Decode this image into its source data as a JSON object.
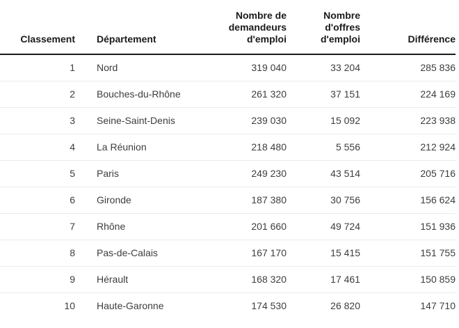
{
  "table": {
    "headers": [
      "Classement",
      "Département",
      "Nombre de\ndemandeurs\nd'emploi",
      "Nombre\nd'offres\nd'emploi",
      "Différence"
    ],
    "rows": [
      {
        "rank": "1",
        "departement": "Nord",
        "demandeurs": "319 040",
        "offres": "33 204",
        "difference": "285 836"
      },
      {
        "rank": "2",
        "departement": "Bouches-du-Rhône",
        "demandeurs": "261 320",
        "offres": "37 151",
        "difference": "224 169"
      },
      {
        "rank": "3",
        "departement": "Seine-Saint-Denis",
        "demandeurs": "239 030",
        "offres": "15 092",
        "difference": "223 938"
      },
      {
        "rank": "4",
        "departement": "La Réunion",
        "demandeurs": "218 480",
        "offres": "5 556",
        "difference": "212 924"
      },
      {
        "rank": "5",
        "departement": "Paris",
        "demandeurs": "249 230",
        "offres": "43 514",
        "difference": "205 716"
      },
      {
        "rank": "6",
        "departement": "Gironde",
        "demandeurs": "187 380",
        "offres": "30 756",
        "difference": "156 624"
      },
      {
        "rank": "7",
        "departement": "Rhône",
        "demandeurs": "201 660",
        "offres": "49 724",
        "difference": "151 936"
      },
      {
        "rank": "8",
        "departement": "Pas-de-Calais",
        "demandeurs": "167 170",
        "offres": "15 415",
        "difference": "151 755"
      },
      {
        "rank": "9",
        "departement": "Hérault",
        "demandeurs": "168 320",
        "offres": "17 461",
        "difference": "150 859"
      },
      {
        "rank": "10",
        "departement": "Haute-Garonne",
        "demandeurs": "174 530",
        "offres": "26 820",
        "difference": "147 710"
      }
    ]
  },
  "chart_data": {
    "type": "table",
    "columns": [
      "Classement",
      "Département",
      "Nombre de demandeurs d'emploi",
      "Nombre d'offres d'emploi",
      "Différence"
    ],
    "rows": [
      [
        1,
        "Nord",
        319040,
        33204,
        285836
      ],
      [
        2,
        "Bouches-du-Rhône",
        261320,
        37151,
        224169
      ],
      [
        3,
        "Seine-Saint-Denis",
        239030,
        15092,
        223938
      ],
      [
        4,
        "La Réunion",
        218480,
        5556,
        212924
      ],
      [
        5,
        "Paris",
        249230,
        43514,
        205716
      ],
      [
        6,
        "Gironde",
        187380,
        30756,
        156624
      ],
      [
        7,
        "Rhône",
        201660,
        49724,
        151936
      ],
      [
        8,
        "Pas-de-Calais",
        167170,
        15415,
        151755
      ],
      [
        9,
        "Hérault",
        168320,
        17461,
        150859
      ],
      [
        10,
        "Haute-Garonne",
        174530,
        26820,
        147710
      ]
    ],
    "number_format": "space as thousands separator"
  },
  "colors": {
    "background": "#ffffff",
    "header_text": "#1a1a1a",
    "body_text": "#3d3d3d",
    "header_border": "#1a1a1a",
    "row_border": "#ebebeb"
  }
}
